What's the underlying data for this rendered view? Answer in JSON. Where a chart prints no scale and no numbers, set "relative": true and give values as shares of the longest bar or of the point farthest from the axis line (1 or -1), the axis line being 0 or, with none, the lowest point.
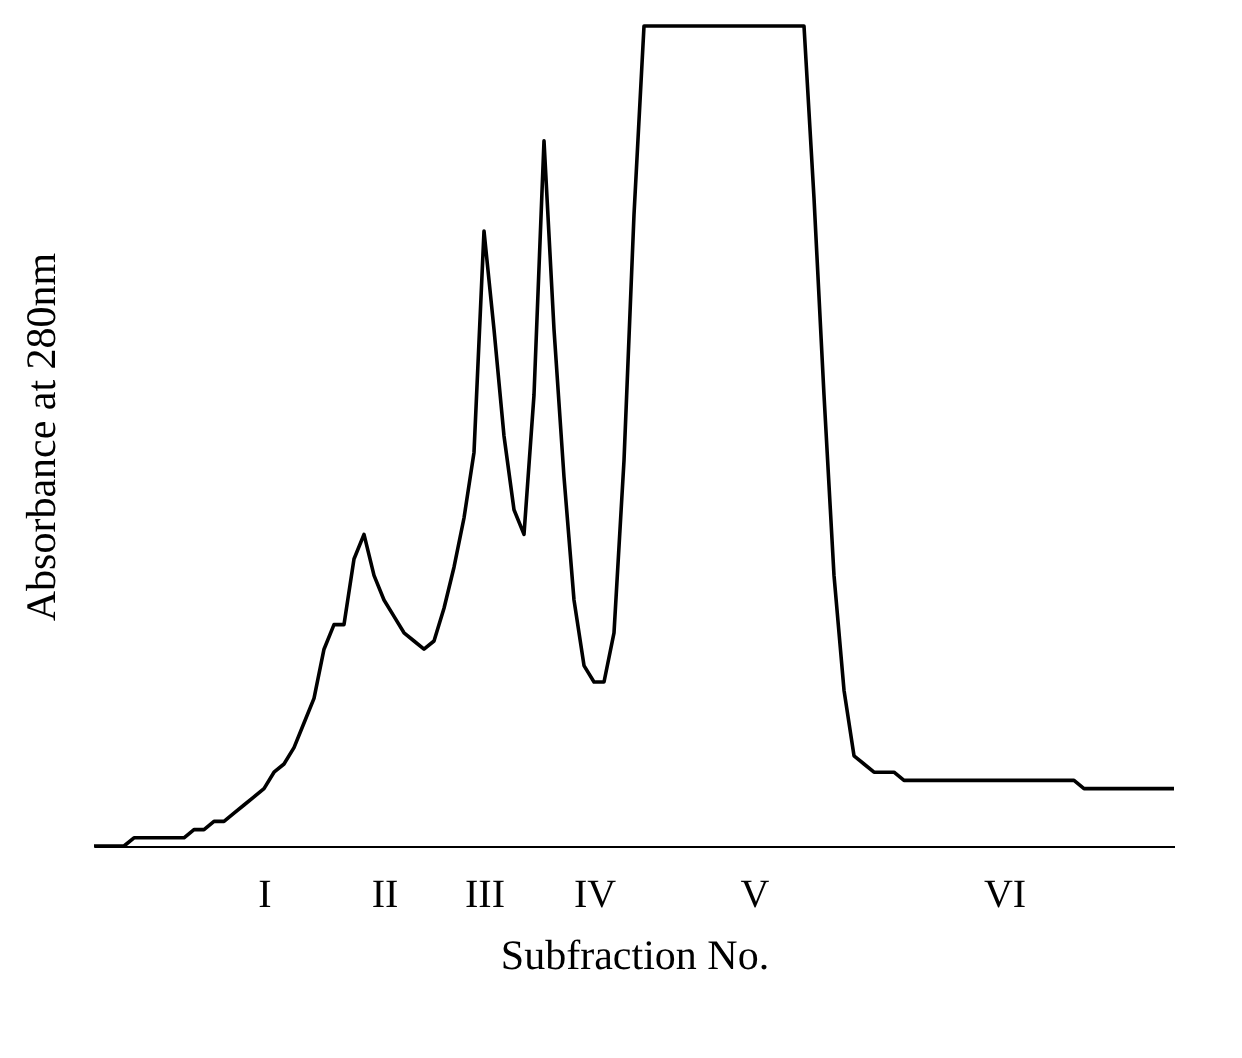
{
  "chart_data": {
    "type": "line",
    "relative": true,
    "xlabel": "Subfraction No.",
    "ylabel": "Absorbance at 280nm",
    "categories": [
      null,
      null,
      null,
      null,
      null,
      null,
      null,
      null,
      null,
      null,
      null,
      null,
      null,
      null,
      null,
      null,
      null,
      "I",
      null,
      null,
      null,
      null,
      null,
      null,
      null,
      null,
      null,
      null,
      null,
      "II",
      null,
      null,
      null,
      null,
      null,
      null,
      null,
      null,
      null,
      "III",
      null,
      null,
      null,
      null,
      null,
      null,
      null,
      null,
      null,
      null,
      "IV",
      null,
      null,
      null,
      null,
      null,
      null,
      null,
      null,
      null,
      null,
      null,
      null,
      null,
      null,
      null,
      "V",
      null,
      null,
      null,
      null,
      null,
      null,
      null,
      null,
      null,
      null,
      null,
      null,
      null,
      null,
      null,
      null,
      null,
      null,
      null,
      null,
      null,
      null,
      null,
      null,
      "VI",
      null,
      null,
      null,
      null,
      null,
      null,
      null,
      null,
      null,
      null,
      null,
      null,
      null,
      null,
      null,
      null,
      null
    ],
    "series": [
      {
        "color": "#000000",
        "values": [
          0,
          0,
          0,
          0,
          0.01,
          0.01,
          0.01,
          0.01,
          0.01,
          0.01,
          0.02,
          0.02,
          0.03,
          0.03,
          0.04,
          0.05,
          0.06,
          0.07,
          0.09,
          0.1,
          0.12,
          0.15,
          0.18,
          0.24,
          0.27,
          0.27,
          0.35,
          0.38,
          0.33,
          0.3,
          0.28,
          0.26,
          0.25,
          0.24,
          0.25,
          0.29,
          0.34,
          0.4,
          0.48,
          0.75,
          0.63,
          0.5,
          0.41,
          0.38,
          0.55,
          0.86,
          0.63,
          0.45,
          0.3,
          0.22,
          0.2,
          0.2,
          0.26,
          0.47,
          0.77,
          1,
          1,
          1,
          1,
          1,
          1,
          1,
          1,
          1,
          1,
          1,
          1,
          1,
          1,
          1,
          1,
          1,
          0.79,
          0.55,
          0.33,
          0.19,
          0.11,
          0.1,
          0.09,
          0.09,
          0.09,
          0.08,
          0.08,
          0.08,
          0.08,
          0.08,
          0.08,
          0.08,
          0.08,
          0.08,
          0.08,
          0.08,
          0.08,
          0.08,
          0.08,
          0.08,
          0.08,
          0.08,
          0.08,
          0.07,
          0.07,
          0.07,
          0.07,
          0.07,
          0.07,
          0.07,
          0.07,
          0.07,
          0.07
        ]
      }
    ]
  }
}
